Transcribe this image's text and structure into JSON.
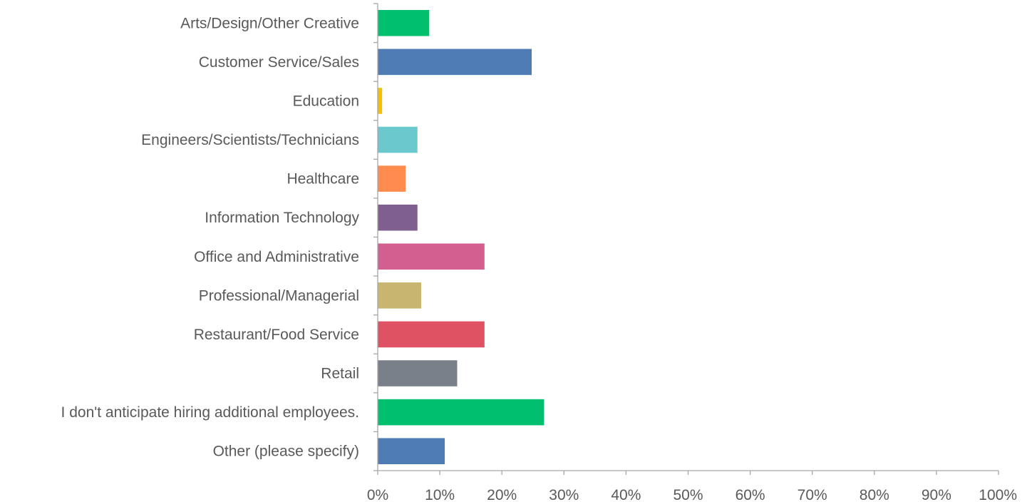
{
  "chart_data": {
    "type": "bar",
    "orientation": "horizontal",
    "title": "",
    "xlabel": "",
    "ylabel": "",
    "categories": [
      "Arts/Design/Other Creative",
      "Customer Service/Sales",
      "Education",
      "Engineers/Scientists/Technicians",
      "Healthcare",
      "Information Technology",
      "Office and Administrative",
      "Professional/Managerial",
      "Restaurant/Food Service",
      "Retail",
      "I don't anticipate hiring additional employees.",
      "Other (please specify)"
    ],
    "values": [
      8.3,
      24.8,
      0.7,
      6.4,
      4.5,
      6.4,
      17.2,
      7.0,
      17.2,
      12.8,
      26.8,
      10.8
    ],
    "colors": [
      "#00bf6f",
      "#507cb6",
      "#f9be00",
      "#6bc8cd",
      "#ff8b4f",
      "#7f5f90",
      "#d25f90",
      "#c8b670",
      "#df5263",
      "#7a8089",
      "#00bf6f",
      "#507cb6"
    ],
    "xlim": [
      0,
      100
    ],
    "xticks": [
      "0%",
      "10%",
      "20%",
      "30%",
      "40%",
      "50%",
      "60%",
      "70%",
      "80%",
      "90%",
      "100%"
    ],
    "grid": false,
    "legend": "none"
  }
}
